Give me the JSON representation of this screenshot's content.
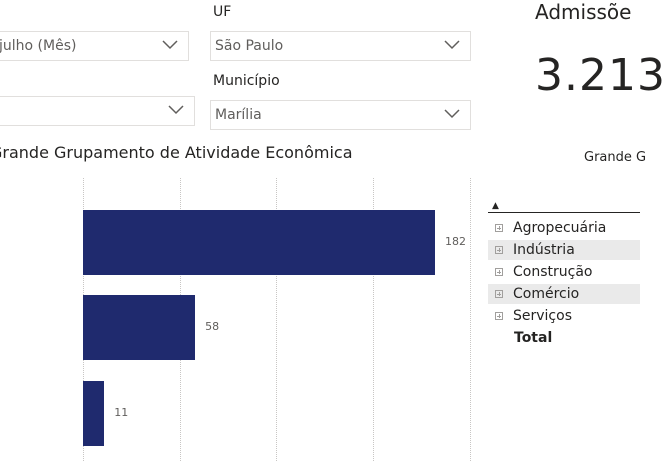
{
  "filters": {
    "month_slicer": {
      "value": "julho (Mês)"
    },
    "left_slicer_2": {
      "value": ""
    },
    "uf": {
      "label": "UF",
      "value": "São Paulo"
    },
    "municipio": {
      "label": "Município",
      "value": "Marília"
    }
  },
  "kpi": {
    "title": "Admissõe",
    "value": "3.213"
  },
  "bar_chart": {
    "title": "Grande Grupamento de Atividade Econômica"
  },
  "chart_data": {
    "type": "bar",
    "orientation": "horizontal",
    "title": "Grande Grupamento de Atividade Econômica",
    "categories": [
      "",
      "",
      ""
    ],
    "values": [
      182,
      58,
      11
    ],
    "data_labels": [
      "182",
      "58",
      "11"
    ],
    "xlim": [
      0,
      200
    ],
    "grid": true,
    "bar_color": "#1f2a6e"
  },
  "matrix": {
    "header": "Grande G",
    "sort_indicator": "▲",
    "rows": [
      {
        "label": "Agropecuária"
      },
      {
        "label": "Indústria"
      },
      {
        "label": "Construção"
      },
      {
        "label": "Comércio"
      },
      {
        "label": "Serviços"
      }
    ],
    "total_label": "Total"
  },
  "colors": {
    "bar": "#1f2a6e",
    "text": "#252423",
    "muted": "#605e5c",
    "row_shade": "#eaeaea"
  }
}
